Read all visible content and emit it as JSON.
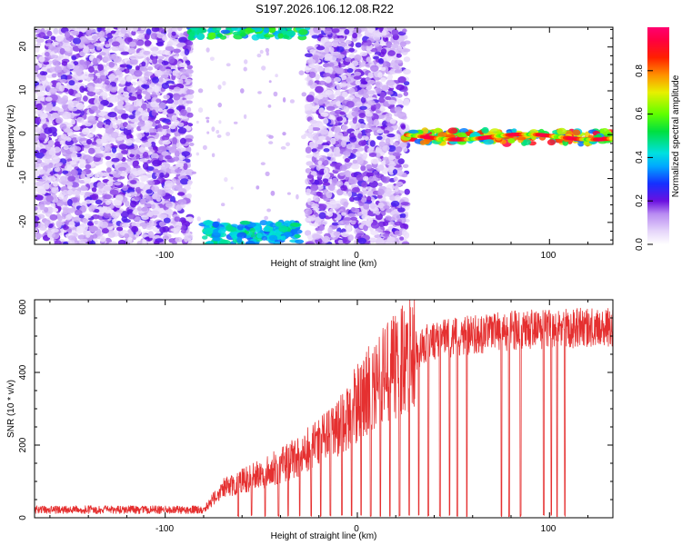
{
  "figure_title": "S197.2026.106.12.08.R22",
  "chart_data": [
    {
      "type": "heatmap",
      "xlabel": "Height of straight line (km)",
      "ylabel": "Frequency (Hz)",
      "xlim": [
        -168,
        133
      ],
      "ylim": [
        -25,
        24.5
      ],
      "xticks": [
        -100,
        0,
        100
      ],
      "xtick_labels": [
        "-100",
        "0",
        "100"
      ],
      "yticks": [
        -20,
        -10,
        0,
        10,
        20
      ],
      "ytick_labels": [
        "-20",
        "-10",
        "0",
        "10",
        "20"
      ],
      "colorbar": {
        "label": "Normalized spectral amplitude",
        "range": [
          0.0,
          1.0
        ],
        "ticks": [
          0.0,
          0.2,
          0.4,
          0.6,
          0.8
        ],
        "tick_labels": [
          "0.0",
          "0.2",
          "0.4",
          "0.6",
          "0.8"
        ]
      },
      "regions": [
        {
          "name": "noise",
          "x": [
            -168,
            -87
          ],
          "y": [
            -25,
            24.5
          ],
          "amplitude": [
            0.1,
            0.3
          ]
        },
        {
          "name": "noise",
          "x": [
            -26,
            26
          ],
          "y": [
            -25,
            24.5
          ],
          "amplitude": [
            0.1,
            0.3
          ]
        },
        {
          "name": "sparse-noise",
          "x": [
            -87,
            -26
          ],
          "y": [
            -25,
            24.5
          ],
          "amplitude": [
            0.1,
            0.2
          ]
        },
        {
          "name": "high-lobe",
          "x": [
            -88,
            -26
          ],
          "y": [
            22,
            24.5
          ],
          "amplitude": [
            0.3,
            0.6
          ]
        },
        {
          "name": "low-lobe",
          "x": [
            -80,
            -30
          ],
          "y": [
            -25,
            -20
          ],
          "amplitude": [
            0.3,
            0.5
          ]
        },
        {
          "name": "signal-band",
          "x": [
            24,
            133
          ],
          "y": [
            -2,
            1
          ],
          "amplitude": [
            0.3,
            0.95
          ]
        }
      ]
    },
    {
      "type": "line",
      "xlabel": "Height of straight line (km)",
      "ylabel": "SNR (10 * v/v)",
      "xlim": [
        -168,
        133
      ],
      "ylim": [
        0,
        600
      ],
      "xticks": [
        -100,
        0,
        100
      ],
      "xtick_labels": [
        "-100",
        "0",
        "100"
      ],
      "yticks": [
        0,
        200,
        400,
        600
      ],
      "ytick_labels": [
        "0",
        "200",
        "400",
        "600"
      ],
      "color": "#e53030",
      "trend": {
        "x": [
          -168,
          -80,
          -70,
          -50,
          -30,
          -10,
          0,
          10,
          20,
          30,
          40,
          60,
          80,
          100,
          133
        ],
        "y": [
          22,
          22,
          80,
          120,
          170,
          240,
          320,
          370,
          420,
          460,
          490,
          505,
          515,
          520,
          525
        ]
      },
      "dropouts_x": [
        -62,
        -55,
        -48,
        -41,
        -36,
        -30,
        -24,
        -19,
        -14,
        -8,
        -3,
        2,
        7,
        12,
        17,
        22,
        27,
        32,
        37,
        43,
        48,
        52,
        57,
        75,
        79,
        85,
        97,
        101,
        104,
        108
      ]
    }
  ]
}
